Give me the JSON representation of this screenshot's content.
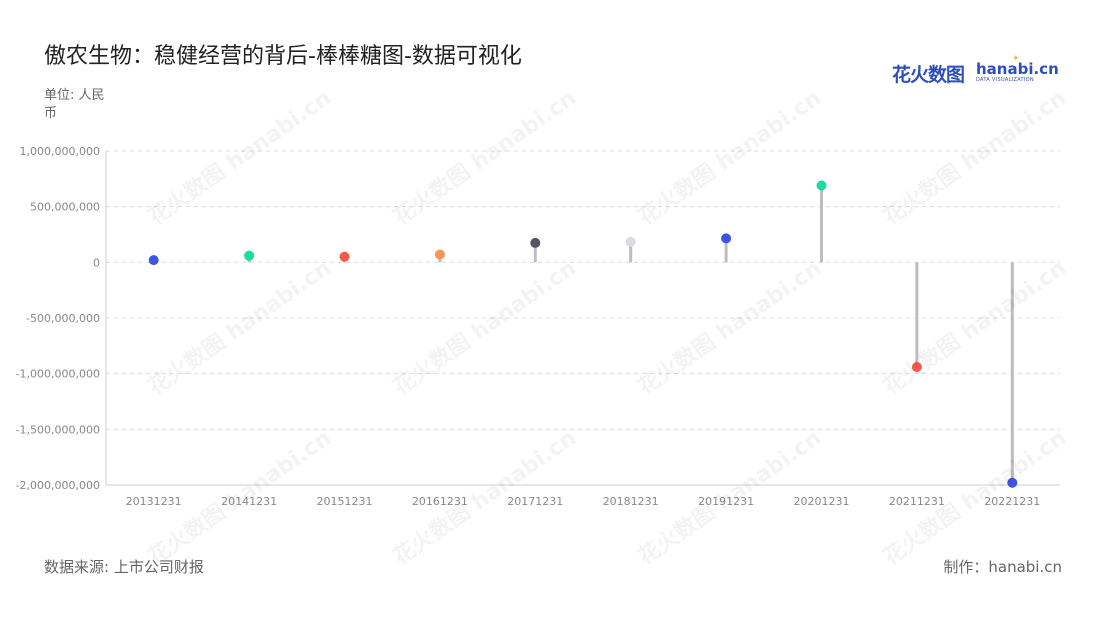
{
  "header": {
    "title": "傲农生物：稳健经营的背后-棒棒糖图-数据可视化",
    "unit": "单位: 人民币"
  },
  "logo": {
    "cn": "花火数图",
    "en": "hanabi.cn",
    "sub": "DATA VISUALIZATION"
  },
  "footer": {
    "source": "数据来源: 上市公司财报",
    "credit": "制作：hanabi.cn"
  },
  "watermark": {
    "text": "花火数图 hanabi.cn"
  },
  "chart_data": {
    "type": "lollipop",
    "categories": [
      "20131231",
      "20141231",
      "20151231",
      "20161231",
      "20171231",
      "20181231",
      "20191231",
      "20201231",
      "20211231",
      "20221231"
    ],
    "values": [
      20000000,
      60000000,
      50000000,
      70000000,
      175000000,
      185000000,
      215000000,
      690000000,
      -940000000,
      -1980000000
    ],
    "colors": [
      "#3b54e2",
      "#1ddc9f",
      "#f25a4a",
      "#f5955a",
      "#545560",
      "#d9dbe3",
      "#3b54e2",
      "#1ddc9f",
      "#f25a4a",
      "#3b54e2"
    ],
    "stem_color": "#bdbdbd",
    "yticks": [
      1000000000,
      500000000,
      0,
      -500000000,
      -1000000000,
      -1500000000,
      -2000000000
    ],
    "ytick_labels": [
      "1,000,000,000",
      "500,000,000",
      "0",
      "-500,000,000",
      "-1,000,000,000",
      "-1,500,000,000",
      "-2,000,000,000"
    ],
    "ylim": [
      -2000000000,
      1000000000
    ],
    "grid": true,
    "legend": "none"
  }
}
